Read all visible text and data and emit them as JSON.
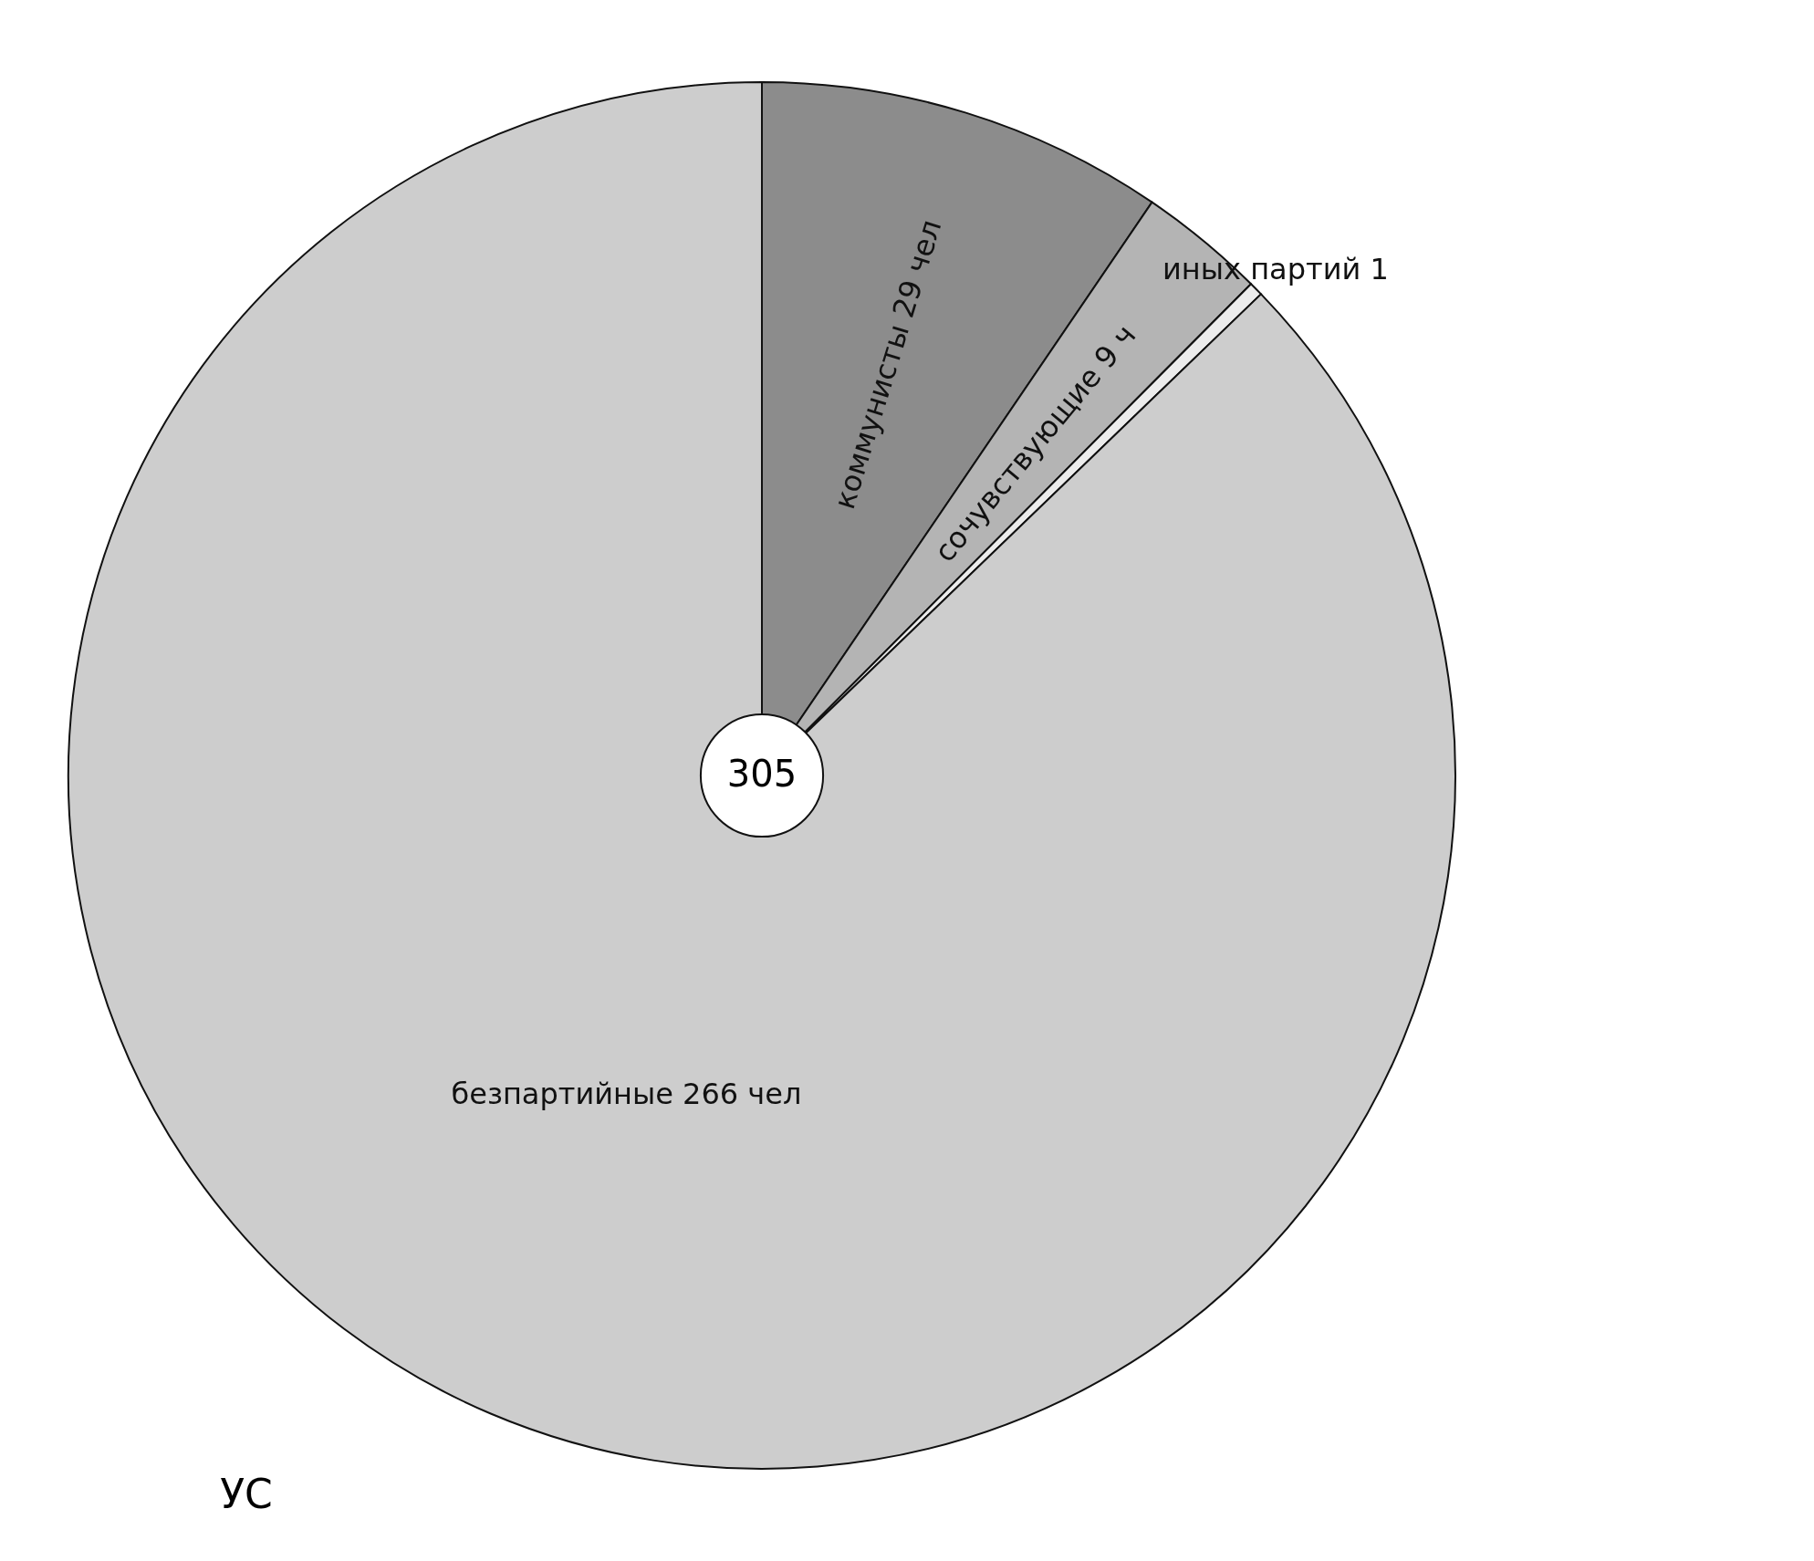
{
  "chart_data": {
    "type": "pie",
    "categories": [
      "коммунисты 29 чел",
      "сочувствующие 9 ч",
      "иных партий 1",
      "безпартийные 266 чел"
    ],
    "values": [
      29,
      9,
      1,
      266
    ],
    "colors": [
      "#8c8c8c",
      "#b4b4b4",
      "#ececec",
      "#cdcdcd"
    ],
    "annotations": [
      "305",
      "УС"
    ]
  }
}
